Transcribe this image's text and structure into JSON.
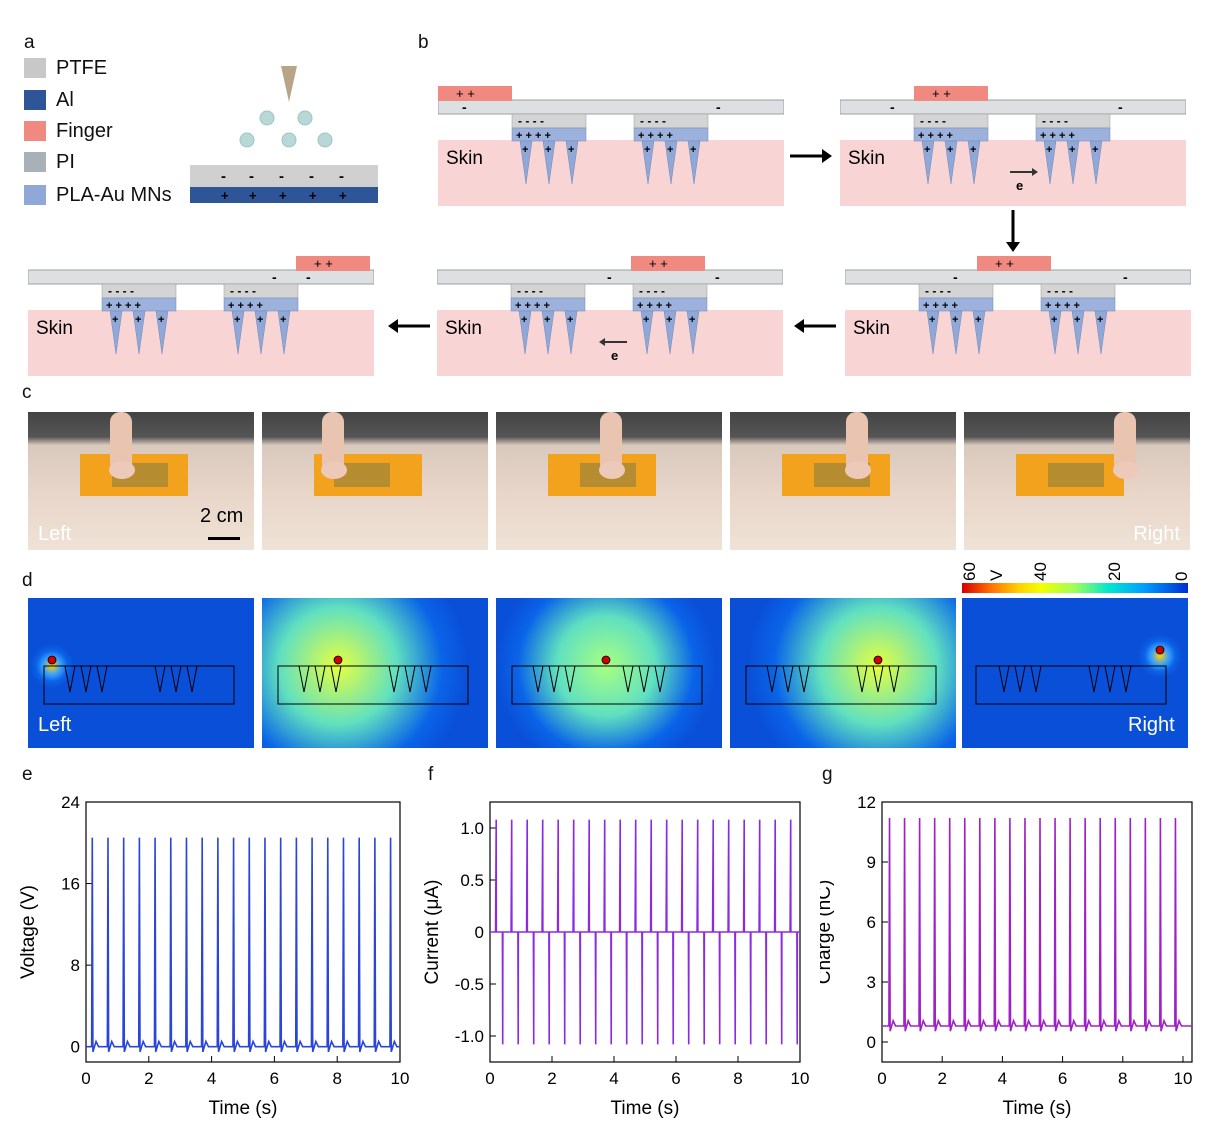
{
  "panels": {
    "a": "a",
    "b": "b",
    "c": "c",
    "d": "d",
    "e": "e",
    "f": "f",
    "g": "g"
  },
  "legend": [
    {
      "label": "PTFE",
      "color": "#c8c8c8"
    },
    {
      "label": "Al",
      "color": "#2d5597"
    },
    {
      "label": "Finger",
      "color": "#f08a80"
    },
    {
      "label": "PI",
      "color": "#a8b0b8"
    },
    {
      "label": "PLA-Au MNs",
      "color": "#8fa8d8"
    }
  ],
  "schematic": {
    "skin": "Skin",
    "electron": "e",
    "plus_pair": "+ +",
    "charges_top": "- - - -",
    "charges_bottom": "+ + + +",
    "minus": "-",
    "spike_plus": "+",
    "contact_minus": "-",
    "contact_plus": "+"
  },
  "photos": {
    "left": "Left",
    "right": "Right",
    "scale": "2 cm"
  },
  "colorbar": {
    "labels": [
      "60",
      "V",
      "40",
      "20",
      "0"
    ]
  },
  "sim": {
    "left": "Left",
    "right": "Right"
  },
  "chart_data": [
    {
      "type": "line",
      "panel": "e",
      "title": "",
      "xlabel": "Time (s)",
      "ylabel": "Voltage (V)",
      "xlim": [
        0,
        10
      ],
      "ylim": [
        -1.5,
        24
      ],
      "xticks": [
        0,
        2,
        4,
        6,
        8,
        10
      ],
      "yticks": [
        0,
        8,
        16,
        24
      ],
      "color": "#2a45d8",
      "baseline": 0,
      "peak": 20.5,
      "period": 0.5,
      "first_peak": 0.2,
      "peaks": 20
    },
    {
      "type": "line",
      "panel": "f",
      "title": "",
      "xlabel": "Time (s)",
      "ylabel": "Current (μA)",
      "xlim": [
        0,
        10
      ],
      "ylim": [
        -1.25,
        1.25
      ],
      "xticks": [
        0,
        2,
        4,
        6,
        8,
        10
      ],
      "yticks": [
        -1.0,
        -0.5,
        0,
        0.5,
        1.0
      ],
      "yticklabels": [
        "-1.0",
        "-0.5",
        "0",
        "0.5",
        "1.0"
      ],
      "color": "#8a2be2",
      "baseline": 0,
      "peak": 1.08,
      "trough": -1.08,
      "period": 0.5,
      "first_peak": 0.2,
      "peaks": 20
    },
    {
      "type": "line",
      "panel": "g",
      "title": "",
      "xlabel": "Time (s)",
      "ylabel": "Charge (nC)",
      "xlim": [
        0,
        10.3
      ],
      "ylim": [
        -1,
        12
      ],
      "xticks": [
        0,
        2,
        4,
        6,
        8,
        10
      ],
      "yticks": [
        0,
        3,
        6,
        9,
        12
      ],
      "color": "#a020c8",
      "baseline": 0.8,
      "peak": 11.2,
      "period": 0.5,
      "first_peak": 0.25,
      "peaks": 20
    }
  ]
}
